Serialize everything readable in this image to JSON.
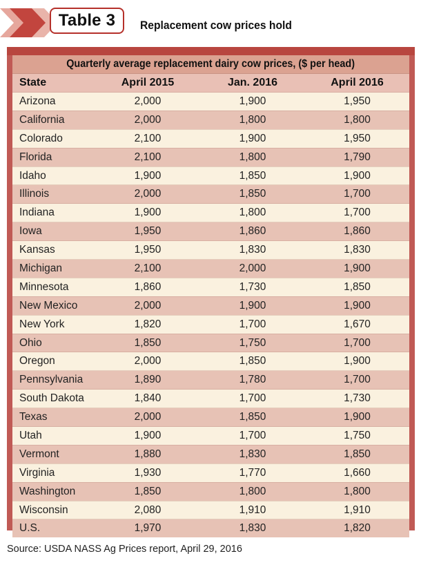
{
  "badge": {
    "label": "Table 3",
    "colors": {
      "border": "#b5302a",
      "chevron_dark": "#b8463f",
      "chevron_light": "#e6a79d"
    }
  },
  "title": "Replacement cow prices hold",
  "table": {
    "caption": "Quarterly average replacement dairy cow prices, ($ per head)",
    "columns": [
      "State",
      "April 2015",
      "Jan. 2016",
      "April 2016"
    ],
    "rows": [
      [
        "Arizona",
        "2,000",
        "1,900",
        "1,950"
      ],
      [
        "California",
        "2,000",
        "1,800",
        "1,800"
      ],
      [
        "Colorado",
        "2,100",
        "1,900",
        "1,950"
      ],
      [
        "Florida",
        "2,100",
        "1,800",
        "1,790"
      ],
      [
        "Idaho",
        "1,900",
        "1,850",
        "1,900"
      ],
      [
        "Illinois",
        "2,000",
        "1,850",
        "1,700"
      ],
      [
        "Indiana",
        "1,900",
        "1,800",
        "1,700"
      ],
      [
        "Iowa",
        "1,950",
        "1,860",
        "1,860"
      ],
      [
        "Kansas",
        "1,950",
        "1,830",
        "1,830"
      ],
      [
        "Michigan",
        "2,100",
        "2,000",
        "1,900"
      ],
      [
        "Minnesota",
        "1,860",
        "1,730",
        "1,850"
      ],
      [
        "New Mexico",
        "2,000",
        "1,900",
        "1,900"
      ],
      [
        "New York",
        "1,820",
        "1,700",
        "1,670"
      ],
      [
        "Ohio",
        "1,850",
        "1,750",
        "1,700"
      ],
      [
        "Oregon",
        "2,000",
        "1,850",
        "1,900"
      ],
      [
        "Pennsylvania",
        "1,890",
        "1,780",
        "1,700"
      ],
      [
        "South Dakota",
        "1,840",
        "1,700",
        "1,730"
      ],
      [
        "Texas",
        "2,000",
        "1,850",
        "1,900"
      ],
      [
        "Utah",
        "1,900",
        "1,700",
        "1,750"
      ],
      [
        "Vermont",
        "1,880",
        "1,830",
        "1,850"
      ],
      [
        "Virginia",
        "1,930",
        "1,770",
        "1,660"
      ],
      [
        "Washington",
        "1,850",
        "1,800",
        "1,800"
      ],
      [
        "Wisconsin",
        "2,080",
        "1,910",
        "1,910"
      ],
      [
        "U.S.",
        "1,970",
        "1,830",
        "1,820"
      ]
    ],
    "colors": {
      "frame": "#c05a55",
      "caption_bg": "#dba291",
      "header_bg": "#e9c0b5",
      "row_light": "#faf1df",
      "row_dark": "#e7c2b5"
    }
  },
  "source": "Source: USDA NASS Ag Prices report, April 29, 2016"
}
